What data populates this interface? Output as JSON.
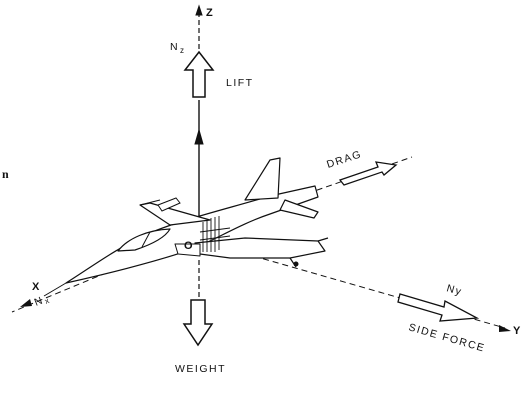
{
  "labels": {
    "z_axis": "Z",
    "nz": "N",
    "nz_sub": "z",
    "lift": "LIFT",
    "drag": "DRAG",
    "x_axis": "X",
    "nx": "N",
    "nx_sub": "x",
    "ny": "Ny",
    "y_axis": "Y",
    "side_force": "SIDE FORCE",
    "weight": "WEIGHT",
    "origin": "O",
    "margin_char": "n"
  },
  "colors": {
    "ink": "#111111",
    "background": "#ffffff"
  }
}
